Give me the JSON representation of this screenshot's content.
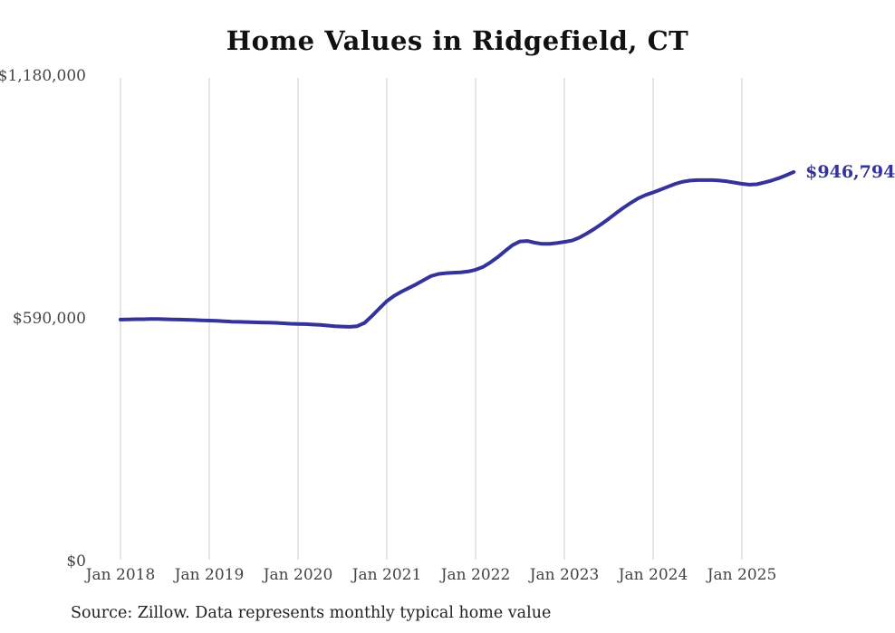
{
  "title": "Home Values in Ridgefield, CT",
  "source_note": "Source: Zillow. Data represents monthly typical home value",
  "end_label": "$946,794",
  "colors": {
    "line": "#333399",
    "end_label": "#333399",
    "gridline": "#cccccc",
    "axis_text": "#444444",
    "title_text": "#111111",
    "background": "#ffffff"
  },
  "chart_data": {
    "type": "line",
    "title": "Home Values in Ridgefield, CT",
    "xlabel": "",
    "ylabel": "",
    "grid": "vertical-only",
    "legend": "none",
    "x_start_month": "2018-01",
    "x_end_month": "2025-08",
    "ylim": [
      0,
      1180000
    ],
    "y_ticks": [
      {
        "value": 0,
        "label": "$0"
      },
      {
        "value": 590000,
        "label": "$590,000"
      },
      {
        "value": 1180000,
        "label": "$1,180,000"
      }
    ],
    "x_ticks": [
      {
        "month_index": 0,
        "label": "Jan 2018"
      },
      {
        "month_index": 12,
        "label": "Jan 2019"
      },
      {
        "month_index": 24,
        "label": "Jan 2020"
      },
      {
        "month_index": 36,
        "label": "Jan 2021"
      },
      {
        "month_index": 48,
        "label": "Jan 2022"
      },
      {
        "month_index": 60,
        "label": "Jan 2023"
      },
      {
        "month_index": 72,
        "label": "Jan 2024"
      },
      {
        "month_index": 84,
        "label": "Jan 2025"
      }
    ],
    "series": [
      {
        "name": "Typical home value",
        "color": "#333399",
        "final_value": 946794,
        "final_value_label": "$946,794",
        "values": [
          588000,
          588500,
          589000,
          589000,
          589500,
          589500,
          589000,
          588500,
          588000,
          587500,
          587000,
          586000,
          585500,
          585000,
          584000,
          583000,
          582500,
          582000,
          581500,
          581000,
          580500,
          580000,
          579000,
          578000,
          577500,
          577000,
          576000,
          575000,
          573500,
          572000,
          571000,
          570500,
          572000,
          580000,
          597000,
          615000,
          633000,
          646000,
          656000,
          665000,
          674000,
          684000,
          694000,
          699000,
          701000,
          702000,
          703000,
          705000,
          709000,
          716000,
          727000,
          740000,
          755000,
          769000,
          778000,
          779000,
          775000,
          772000,
          772000,
          774000,
          777000,
          780000,
          787000,
          797000,
          808000,
          820000,
          833000,
          847000,
          860000,
          872000,
          883000,
          891000,
          897000,
          904000,
          911000,
          918000,
          923000,
          926000,
          927000,
          927000,
          927000,
          926000,
          924000,
          921000,
          918000,
          916000,
          917000,
          921000,
          926000,
          932000,
          939000,
          946794
        ]
      }
    ]
  }
}
